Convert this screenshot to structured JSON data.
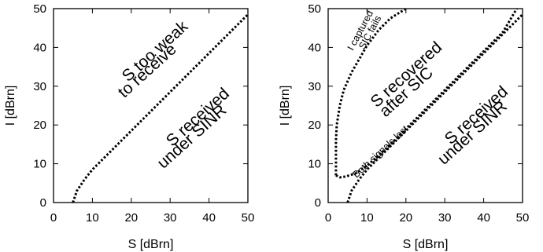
{
  "chart_data": [
    {
      "type": "line",
      "xlabel": "S [dBrn]",
      "ylabel": "I [dBrn]",
      "xlim": [
        0,
        50
      ],
      "ylim": [
        0,
        50
      ],
      "xticks": [
        "0",
        "10",
        "20",
        "30",
        "40",
        "50"
      ],
      "yticks": [
        "0",
        "10",
        "20",
        "30",
        "40",
        "50"
      ],
      "grid": false,
      "series": [
        {
          "style": "dotted",
          "x": [
            5,
            6,
            8,
            10,
            15,
            20,
            25,
            30,
            35,
            40,
            45,
            50
          ],
          "y": [
            0,
            3,
            6,
            8.5,
            13.5,
            18.5,
            23.5,
            28.5,
            33.5,
            38.5,
            43.5,
            48.5
          ]
        }
      ],
      "annotations": [
        {
          "text": "S too weak",
          "x": 27,
          "y": 38,
          "rotation": -42
        },
        {
          "text": "to receive",
          "x": 25,
          "y": 33,
          "rotation": -42
        },
        {
          "text": "S received",
          "x": 38,
          "y": 21,
          "rotation": -42
        },
        {
          "text": "under SINR",
          "x": 36.5,
          "y": 16,
          "rotation": -42
        }
      ]
    },
    {
      "type": "line",
      "xlabel": "S [dBrn]",
      "ylabel": "I [dBrn]",
      "xlim": [
        0,
        50
      ],
      "ylim": [
        0,
        50
      ],
      "xticks": [
        "0",
        "10",
        "20",
        "30",
        "40",
        "50"
      ],
      "yticks": [
        "0",
        "10",
        "20",
        "30",
        "40",
        "50"
      ],
      "grid": false,
      "series": [
        {
          "style": "dotted",
          "x": [
            2,
            2,
            2.2,
            3,
            4,
            6,
            8,
            10,
            13,
            16,
            20
          ],
          "y": [
            7,
            16,
            20,
            25,
            29,
            33.5,
            37,
            40.5,
            44.5,
            47.5,
            50
          ]
        },
        {
          "style": "dotted",
          "x": [
            2,
            3,
            4.5,
            7,
            10,
            15,
            20,
            25,
            30,
            35,
            40,
            45,
            48.5
          ],
          "y": [
            7,
            6.5,
            6.7,
            7.5,
            9.5,
            14,
            19,
            24,
            29,
            34,
            39,
            44,
            50
          ]
        },
        {
          "style": "dotted",
          "x": [
            5,
            6,
            8,
            10,
            15,
            20,
            25,
            30,
            35,
            40,
            45,
            50
          ],
          "y": [
            0,
            3,
            6,
            8.5,
            13.5,
            18.5,
            23.5,
            28.5,
            33.5,
            38.5,
            43.5,
            48.5
          ]
        }
      ],
      "annotations": [
        {
          "text": "I captured",
          "x": 9,
          "y": 44,
          "rotation": -62,
          "small": true
        },
        {
          "text": "SIC fails",
          "x": 11.5,
          "y": 43.5,
          "rotation": -62,
          "small": true
        },
        {
          "text": "S recovered",
          "x": 21,
          "y": 32,
          "rotation": -42
        },
        {
          "text": "after SIC",
          "x": 21,
          "y": 27.5,
          "rotation": -42
        },
        {
          "text": "Both signals lost",
          "x": 14,
          "y": 12.5,
          "rotation": -43,
          "small": true
        },
        {
          "text": "S received",
          "x": 39,
          "y": 21.5,
          "rotation": -42
        },
        {
          "text": "under SINR",
          "x": 38,
          "y": 17,
          "rotation": -42
        }
      ]
    }
  ]
}
